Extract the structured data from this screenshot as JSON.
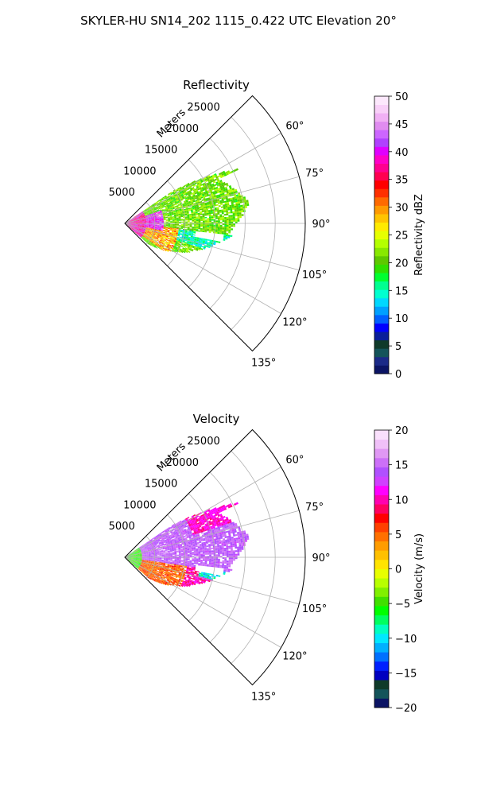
{
  "figure": {
    "suptitle": "SKYLER-HU  SN14_202  1115_0.422 UTC Elevation 20°"
  },
  "chart_data": [
    {
      "type": "polar-sector",
      "title": "Reflectivity",
      "radial_label": "Meters",
      "radial_ticks": [
        5000,
        10000,
        15000,
        20000,
        25000
      ],
      "radial_tick_labels": [
        "5000",
        "10000",
        "15000",
        "20000",
        "25000"
      ],
      "rmax": 30000,
      "theta_range_deg": [
        45,
        135
      ],
      "theta_ticks_deg": [
        60,
        75,
        90,
        105,
        120,
        135
      ],
      "theta_tick_labels": [
        "60°",
        "75°",
        "90°",
        "105°",
        "120°",
        "135°"
      ],
      "grid": true,
      "colorbar": {
        "label": "Reflectivity dBZ",
        "range": [
          0,
          50
        ],
        "ticks": [
          0,
          5,
          10,
          15,
          20,
          25,
          30,
          35,
          40,
          45,
          50
        ],
        "tick_labels": [
          "0",
          "5",
          "10",
          "15",
          "20",
          "25",
          "30",
          "35",
          "40",
          "45",
          "50"
        ],
        "palette": [
          "#0b1464",
          "#1b2a88",
          "#14545a",
          "#0f3a2a",
          "#0a1e9a",
          "#0000ff",
          "#0060ff",
          "#00a0ff",
          "#00d8ff",
          "#00ffd0",
          "#00ff90",
          "#00ff30",
          "#30e000",
          "#5ec800",
          "#88e800",
          "#b4ff00",
          "#e6ff00",
          "#ffea00",
          "#ffc400",
          "#ff9a00",
          "#ff6a00",
          "#ff3000",
          "#ff0000",
          "#ff0050",
          "#ff0090",
          "#ff00c8",
          "#e000ff",
          "#b040ff",
          "#cc66ff",
          "#e08cf0",
          "#f0b0f4",
          "#f8d0f8",
          "#fce8fc"
        ]
      }
    },
    {
      "type": "polar-sector",
      "title": "Velocity",
      "radial_label": "Meters",
      "radial_ticks": [
        5000,
        10000,
        15000,
        20000,
        25000
      ],
      "radial_tick_labels": [
        "5000",
        "10000",
        "15000",
        "20000",
        "25000"
      ],
      "rmax": 30000,
      "theta_range_deg": [
        45,
        135
      ],
      "theta_ticks_deg": [
        60,
        75,
        90,
        105,
        120,
        135
      ],
      "theta_tick_labels": [
        "60°",
        "75°",
        "90°",
        "105°",
        "120°",
        "135°"
      ],
      "grid": true,
      "colorbar": {
        "label": "Velocity (m/s)",
        "range": [
          -20,
          20
        ],
        "ticks": [
          -20,
          -15,
          -10,
          -5,
          0,
          5,
          10,
          15,
          20
        ],
        "tick_labels": [
          "−20",
          "−15",
          "−10",
          "−5",
          "0",
          "5",
          "10",
          "15",
          "20"
        ],
        "palette": [
          "#0b1464",
          "#14545a",
          "#0f3a2a",
          "#0000c0",
          "#0020ff",
          "#0070ff",
          "#00b0ff",
          "#00e8ff",
          "#00ffc0",
          "#00ff60",
          "#00ff00",
          "#40e000",
          "#80f000",
          "#b8ff00",
          "#e8ff00",
          "#ffe400",
          "#ffc000",
          "#ff9c00",
          "#ff7000",
          "#ff4000",
          "#ff0000",
          "#ff0060",
          "#ff00b0",
          "#ff00ff",
          "#d040ff",
          "#b050ff",
          "#cc70f8",
          "#e098f4",
          "#f0c0f8",
          "#fae0fc"
        ]
      }
    }
  ]
}
